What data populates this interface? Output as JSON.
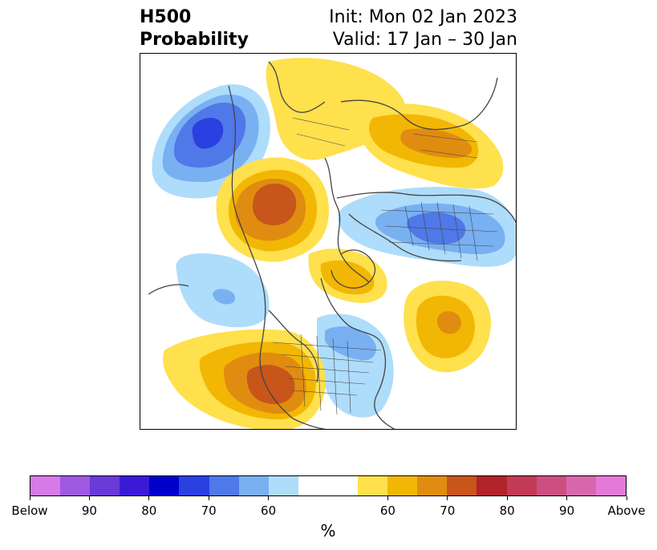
{
  "header": {
    "title_line1": "H500",
    "title_line2": "Probability",
    "init": "Init: Mon 02 Jan 2023",
    "valid": "Valid: 17 Jan – 30 Jan"
  },
  "colorbar": {
    "unit": "%",
    "colors": [
      "#d67ae8",
      "#9e5ae0",
      "#6a3ad8",
      "#3a1ad6",
      "#0000cd",
      "#2a40e0",
      "#4f78e8",
      "#78b0f2",
      "#aedcfb",
      "#ffffff",
      "#ffffff",
      "#ffe04d",
      "#f2b705",
      "#e08c10",
      "#c8551a",
      "#b0242a",
      "#c23a55",
      "#cc4f80",
      "#d868ac",
      "#e47ad8"
    ],
    "ticks": [
      {
        "label": "Below",
        "index": 0
      },
      {
        "label": "90",
        "index": 2
      },
      {
        "label": "80",
        "index": 4
      },
      {
        "label": "70",
        "index": 6
      },
      {
        "label": "60",
        "index": 8
      },
      {
        "label": "60",
        "index": 12
      },
      {
        "label": "70",
        "index": 14
      },
      {
        "label": "80",
        "index": 16
      },
      {
        "label": "90",
        "index": 18
      },
      {
        "label": "Above",
        "index": 20
      }
    ]
  },
  "map": {
    "colors": {
      "below_60": "#aedcfb",
      "below_65": "#78b0f2",
      "below_70": "#4f78e8",
      "below_80": "#2a40e0",
      "above_55": "#ffe04d",
      "above_60": "#f2b705",
      "above_65": "#e08c10",
      "above_70": "#c8551a",
      "coast": "#444444"
    }
  }
}
